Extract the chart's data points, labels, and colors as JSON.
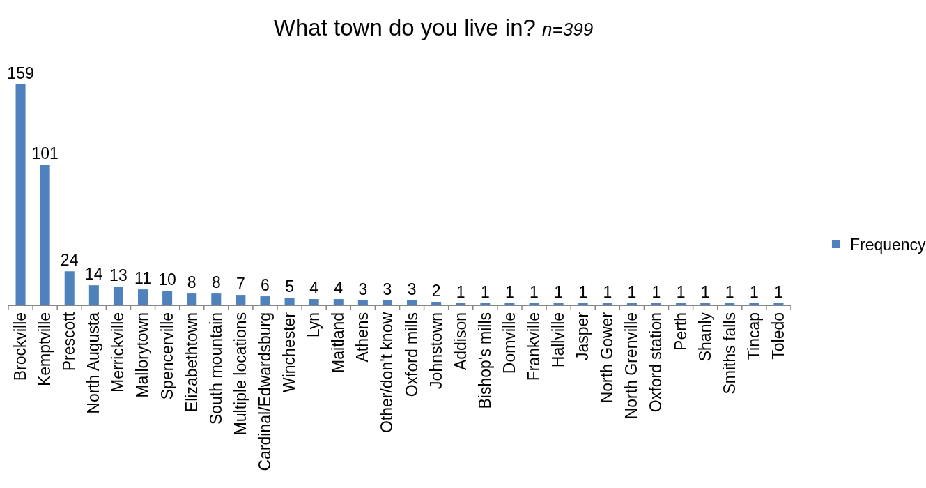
{
  "chart_data": {
    "type": "bar",
    "title": "What town do you live in?",
    "subtitle": "n=399",
    "categories": [
      "Brockville",
      "Kemptville",
      "Prescott",
      "North Augusta",
      "Merrickville",
      "Mallorytown",
      "Spencerville",
      "Elizabethtown",
      "South mountain",
      "Multiple locations",
      "Cardinal/Edwardsburg",
      "Winchester",
      "Lyn",
      "Maitland",
      "Athens",
      "Other/don't know",
      "Oxford mills",
      "Johnstown",
      "Addison",
      "Bishop's mills",
      "Domville",
      "Frankville",
      "Hallville",
      "Jasper",
      "North Gower",
      "North Grenville",
      "Oxford station",
      "Perth",
      "Shanly",
      "Smiths falls",
      "Tincap",
      "Toledo"
    ],
    "series": [
      {
        "name": "Frequency",
        "color": "#4f81bd",
        "values": [
          159,
          101,
          24,
          14,
          13,
          11,
          10,
          8,
          8,
          7,
          6,
          5,
          4,
          4,
          3,
          3,
          3,
          2,
          1,
          1,
          1,
          1,
          1,
          1,
          1,
          1,
          1,
          1,
          1,
          1,
          1,
          1
        ]
      }
    ],
    "data_labels": true,
    "legend": "right",
    "tick_labels": "x"
  }
}
